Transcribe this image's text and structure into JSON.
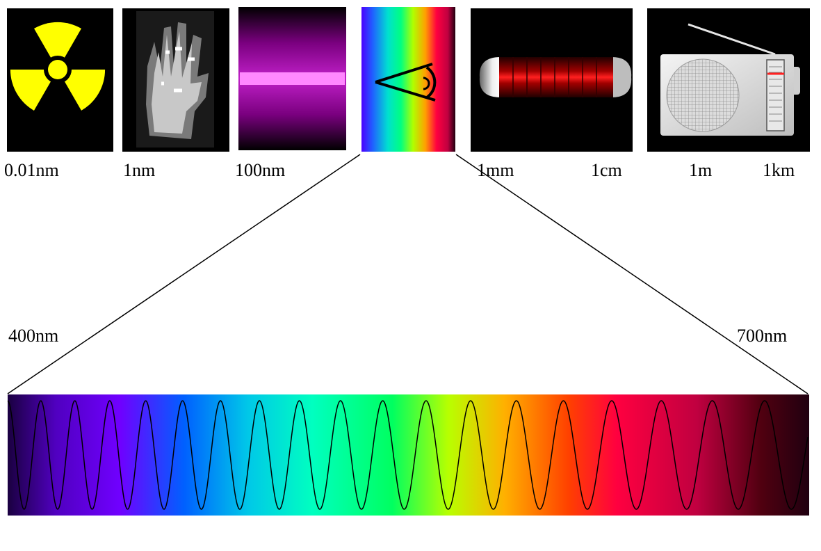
{
  "panels": [
    {
      "name": "gamma-ray",
      "icon": "radiation-trefoil-icon",
      "background": "#000000",
      "accent": "#ffff00"
    },
    {
      "name": "x-ray",
      "icon": "xray-hand-icon",
      "background": "#000000",
      "accent": "#c8c8c8"
    },
    {
      "name": "ultraviolet",
      "icon": "uv-lamp-icon",
      "background": "#000000",
      "accent": "#b000b8"
    },
    {
      "name": "visible",
      "icon": "eye-icon",
      "background": "#000000",
      "accent": "#ff0040"
    },
    {
      "name": "microwave",
      "icon": "magnetron-icon",
      "background": "#000000",
      "accent": "#cc0000"
    },
    {
      "name": "radio",
      "icon": "radio-receiver-icon",
      "background": "#000000",
      "accent": "#e6e6e6"
    }
  ],
  "scale_labels": {
    "l001nm": "0.01nm",
    "l1nm": "1nm",
    "l100nm": "100nm",
    "l1mm": "1mm",
    "l1cm": "1cm",
    "l1m": "1m",
    "l1km": "1km"
  },
  "visible_range": {
    "start_label": "400nm",
    "end_label": "700nm",
    "start_nm": 400,
    "end_nm": 700
  },
  "wave": {
    "icon": "sine-wave-icon",
    "color": "#000000"
  },
  "colors": {
    "spectrum": [
      "#2a0050",
      "#6a00ff",
      "#0060ff",
      "#00e0d0",
      "#00ff80",
      "#b0ff00",
      "#ffa000",
      "#ff0040",
      "#d00040",
      "#300000"
    ]
  }
}
